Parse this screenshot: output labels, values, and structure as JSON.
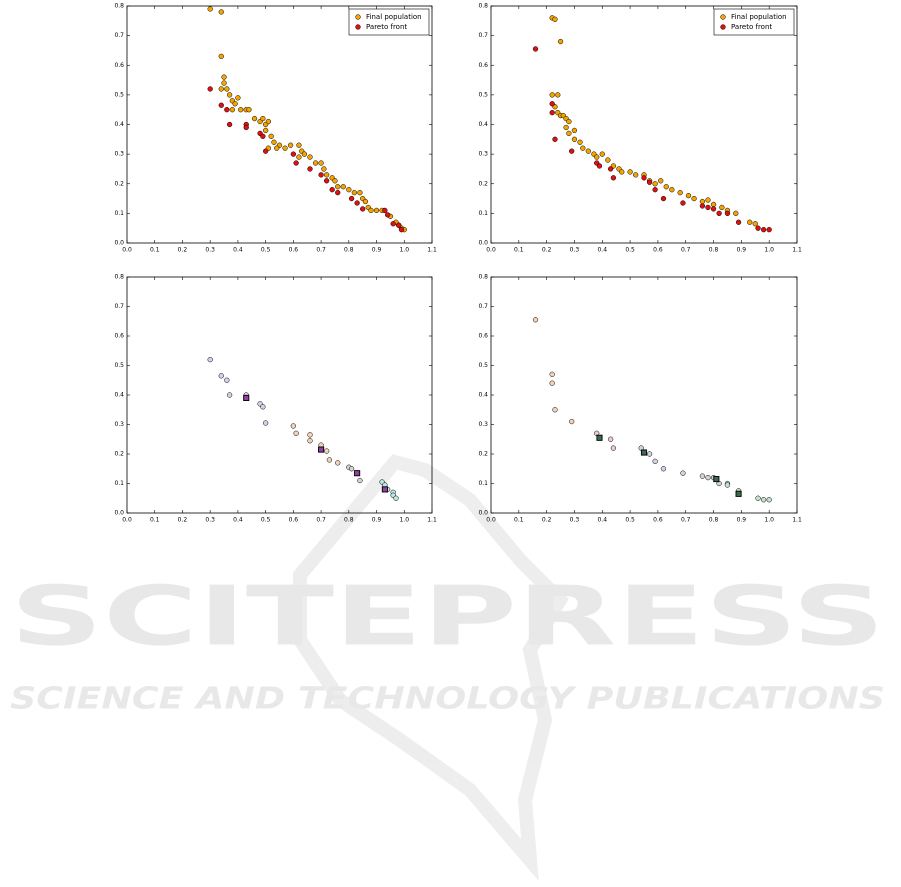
{
  "chart_data": [
    {
      "type": "scatter",
      "legend": "upper right",
      "xlim": [
        0,
        1.1
      ],
      "ylim": [
        0,
        0.8
      ],
      "xticks": [
        {
          "value": 0,
          "label": "0.0"
        },
        0.1,
        0.2,
        0.3,
        0.4,
        0.5,
        0.6,
        0.7,
        0.8,
        0.9,
        {
          "value": 1,
          "label": "1.0"
        },
        1.1
      ],
      "yticks": [
        {
          "value": 0,
          "label": "0.0"
        },
        0.1,
        0.2,
        0.3,
        0.4,
        0.5,
        0.6,
        0.7,
        0.8
      ],
      "series": [
        {
          "name": "Final population",
          "color": "#f5a300",
          "marker": "o",
          "x": [
            0.3,
            0.34,
            0.34,
            0.35,
            0.35,
            0.34,
            0.36,
            0.37,
            0.38,
            0.39,
            0.4,
            0.38,
            0.41,
            0.43,
            0.44,
            0.46,
            0.48,
            0.49,
            0.5,
            0.51,
            0.5,
            0.52,
            0.53,
            0.51,
            0.55,
            0.54,
            0.57,
            0.59,
            0.62,
            0.63,
            0.62,
            0.64,
            0.66,
            0.68,
            0.7,
            0.71,
            0.72,
            0.74,
            0.75,
            0.76,
            0.78,
            0.8,
            0.82,
            0.84,
            0.85,
            0.86,
            0.87,
            0.88,
            0.9,
            0.92,
            0.95,
            0.97,
            0.98,
            0.99,
            1.0
          ],
          "values": [
            0.79,
            0.78,
            0.63,
            0.56,
            0.54,
            0.52,
            0.52,
            0.5,
            0.48,
            0.47,
            0.49,
            0.45,
            0.45,
            0.45,
            0.45,
            0.42,
            0.41,
            0.42,
            0.4,
            0.41,
            0.38,
            0.36,
            0.34,
            0.32,
            0.33,
            0.32,
            0.32,
            0.33,
            0.33,
            0.31,
            0.29,
            0.3,
            0.29,
            0.27,
            0.27,
            0.25,
            0.23,
            0.22,
            0.21,
            0.19,
            0.19,
            0.18,
            0.17,
            0.17,
            0.15,
            0.14,
            0.12,
            0.11,
            0.11,
            0.11,
            0.09,
            0.07,
            0.06,
            0.05,
            0.045
          ]
        },
        {
          "name": "Pareto front",
          "color": "#e01010",
          "marker": "o",
          "x": [
            0.3,
            0.34,
            0.36,
            0.37,
            0.43,
            0.43,
            0.48,
            0.49,
            0.5,
            0.6,
            0.61,
            0.66,
            0.7,
            0.72,
            0.74,
            0.76,
            0.81,
            0.83,
            0.85,
            0.93,
            0.94,
            0.96,
            0.98,
            0.99
          ],
          "values": [
            0.52,
            0.465,
            0.45,
            0.4,
            0.4,
            0.39,
            0.37,
            0.36,
            0.31,
            0.3,
            0.27,
            0.25,
            0.23,
            0.21,
            0.18,
            0.17,
            0.15,
            0.135,
            0.115,
            0.11,
            0.095,
            0.065,
            0.06,
            0.045
          ]
        }
      ]
    },
    {
      "type": "scatter",
      "legend": "upper right",
      "xlim": [
        0,
        1.1
      ],
      "ylim": [
        0,
        0.8
      ],
      "xticks": [
        {
          "value": 0,
          "label": "0.0"
        },
        0.1,
        0.2,
        0.3,
        0.4,
        0.5,
        0.6,
        0.7,
        0.8,
        0.9,
        {
          "value": 1,
          "label": "1.0"
        },
        1.1
      ],
      "yticks": [
        {
          "value": 0,
          "label": "0.0"
        },
        0.1,
        0.2,
        0.3,
        0.4,
        0.5,
        0.6,
        0.7,
        0.8
      ],
      "series": [
        {
          "name": "Final population",
          "color": "#f5a300",
          "marker": "o",
          "x": [
            0.22,
            0.23,
            0.25,
            0.22,
            0.24,
            0.23,
            0.24,
            0.25,
            0.26,
            0.27,
            0.28,
            0.27,
            0.28,
            0.3,
            0.3,
            0.32,
            0.33,
            0.35,
            0.37,
            0.38,
            0.4,
            0.42,
            0.44,
            0.46,
            0.47,
            0.5,
            0.52,
            0.55,
            0.57,
            0.59,
            0.61,
            0.63,
            0.65,
            0.68,
            0.71,
            0.73,
            0.76,
            0.78,
            0.8,
            0.83,
            0.85,
            0.88,
            0.93,
            0.95
          ],
          "values": [
            0.76,
            0.755,
            0.68,
            0.5,
            0.5,
            0.46,
            0.44,
            0.43,
            0.43,
            0.42,
            0.41,
            0.39,
            0.37,
            0.38,
            0.35,
            0.34,
            0.32,
            0.31,
            0.3,
            0.29,
            0.3,
            0.28,
            0.26,
            0.25,
            0.24,
            0.24,
            0.23,
            0.23,
            0.21,
            0.2,
            0.21,
            0.19,
            0.18,
            0.17,
            0.16,
            0.15,
            0.14,
            0.145,
            0.13,
            0.12,
            0.11,
            0.1,
            0.07,
            0.065
          ]
        },
        {
          "name": "Pareto front",
          "color": "#e01010",
          "marker": "o",
          "x": [
            0.16,
            0.22,
            0.22,
            0.23,
            0.29,
            0.38,
            0.39,
            0.43,
            0.44,
            0.55,
            0.57,
            0.59,
            0.62,
            0.69,
            0.76,
            0.78,
            0.8,
            0.82,
            0.85,
            0.89,
            0.96,
            0.98,
            1.0
          ],
          "values": [
            0.655,
            0.47,
            0.44,
            0.35,
            0.31,
            0.27,
            0.26,
            0.25,
            0.22,
            0.22,
            0.205,
            0.18,
            0.15,
            0.135,
            0.125,
            0.12,
            0.115,
            0.1,
            0.1,
            0.07,
            0.05,
            0.045,
            0.045
          ]
        }
      ]
    },
    {
      "type": "scatter",
      "xlim": [
        0,
        1.1
      ],
      "ylim": [
        0,
        0.8
      ],
      "xticks": [
        {
          "value": 0,
          "label": "0.0"
        },
        0.1,
        0.2,
        0.3,
        0.4,
        0.5,
        0.6,
        0.7,
        0.8,
        0.9,
        {
          "value": 1,
          "label": "1.0"
        },
        1.1
      ],
      "yticks": [
        {
          "value": 0,
          "label": "0.0"
        },
        0.1,
        0.2,
        0.3,
        0.4,
        0.5,
        0.6,
        0.7,
        0.8
      ],
      "series": [
        {
          "color": "#d8d0e8",
          "marker": "o",
          "x": [
            0.3,
            0.34,
            0.36,
            0.37,
            0.43,
            0.48,
            0.49,
            0.5
          ],
          "values": [
            0.52,
            0.465,
            0.45,
            0.4,
            0.4,
            0.37,
            0.36,
            0.305
          ]
        },
        {
          "color": "#f2d2b8",
          "marker": "o",
          "x": [
            0.6,
            0.61,
            0.66,
            0.66,
            0.7,
            0.72,
            0.73,
            0.76
          ],
          "values": [
            0.295,
            0.27,
            0.265,
            0.245,
            0.23,
            0.21,
            0.18,
            0.17
          ]
        },
        {
          "color": "#d4d4d4",
          "marker": "o",
          "x": [
            0.8,
            0.81,
            0.84
          ],
          "values": [
            0.155,
            0.15,
            0.11
          ]
        },
        {
          "color": "#b8e8e0",
          "marker": "o",
          "x": [
            0.92,
            0.93,
            0.94,
            0.96,
            0.96,
            0.97
          ],
          "values": [
            0.105,
            0.095,
            0.08,
            0.07,
            0.06,
            0.05
          ]
        },
        {
          "color": "#9040a0",
          "marker": "s",
          "x": [
            0.43,
            0.7,
            0.83,
            0.93
          ],
          "values": [
            0.39,
            0.215,
            0.135,
            0.08
          ]
        }
      ]
    },
    {
      "type": "scatter",
      "xlim": [
        0,
        1.1
      ],
      "ylim": [
        0,
        0.8
      ],
      "xticks": [
        {
          "value": 0,
          "label": "0.0"
        },
        0.1,
        0.2,
        0.3,
        0.4,
        0.5,
        0.6,
        0.7,
        0.8,
        0.9,
        {
          "value": 1,
          "label": "1.0"
        },
        1.1
      ],
      "yticks": [
        {
          "value": 0,
          "label": "0.0"
        },
        0.1,
        0.2,
        0.3,
        0.4,
        0.5,
        0.6,
        0.7,
        0.8
      ],
      "series": [
        {
          "color": "#f2d2b8",
          "marker": "o",
          "x": [
            0.16,
            0.22,
            0.22,
            0.23,
            0.29
          ],
          "values": [
            0.655,
            0.47,
            0.44,
            0.35,
            0.31
          ]
        },
        {
          "color": "#f0c8d0",
          "marker": "o",
          "x": [
            0.38,
            0.43,
            0.44
          ],
          "values": [
            0.27,
            0.25,
            0.22
          ]
        },
        {
          "color": "#d8d0e8",
          "marker": "o",
          "x": [
            0.54,
            0.57,
            0.59,
            0.62
          ],
          "values": [
            0.22,
            0.2,
            0.175,
            0.15
          ]
        },
        {
          "color": "#d4d4d4",
          "marker": "o",
          "x": [
            0.69,
            0.76,
            0.78,
            0.8,
            0.82
          ],
          "values": [
            0.135,
            0.125,
            0.12,
            0.12,
            0.1
          ]
        },
        {
          "color": "#c8e0d0",
          "marker": "o",
          "x": [
            0.85,
            0.85,
            0.89,
            0.96,
            0.98,
            1.0
          ],
          "values": [
            0.1,
            0.095,
            0.075,
            0.05,
            0.045,
            0.045
          ]
        },
        {
          "color": "#3a6a50",
          "marker": "s",
          "x": [
            0.39,
            0.55,
            0.81,
            0.89
          ],
          "values": [
            0.255,
            0.205,
            0.115,
            0.065
          ]
        }
      ]
    }
  ],
  "watermark": {
    "title": "SCITEPRESS",
    "subtitle": "SCIENCE AND TECHNOLOGY PUBLICATIONS"
  }
}
